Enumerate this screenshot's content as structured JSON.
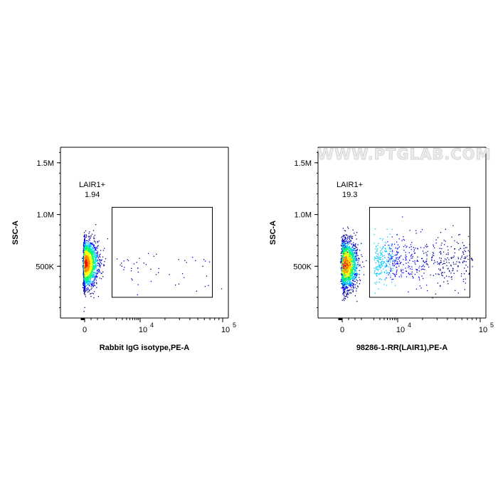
{
  "watermark": "WWW.PTGLAB.COM",
  "chart_data": [
    {
      "type": "scatter",
      "subtype": "flow-cytometry-density-plot",
      "xlabel": "Rabbit IgG isotype,PE-A",
      "ylabel": "SSC-A",
      "x_scale": "biexponential",
      "x_ticks": [
        "0",
        "10",
        "10"
      ],
      "x_tick_exponents": [
        "",
        "4",
        "5"
      ],
      "y_ticks": [
        "500K",
        "1.0M",
        "1.5M"
      ],
      "ylim": [
        0,
        1650000
      ],
      "gate": {
        "name": "LAIR1+",
        "value": "1.94",
        "x_range": [
          1500,
          75000
        ],
        "y_range": [
          200000,
          1070000
        ]
      },
      "populations": [
        {
          "name": "main",
          "x_center": 0,
          "y_center": 530000,
          "fraction": 0.98
        },
        {
          "name": "positive",
          "x_center": 5000,
          "y_center": 500000,
          "fraction": 0.0194
        }
      ],
      "colors": [
        "#00008b",
        "#0000ff",
        "#00c8ff",
        "#00ff66",
        "#ffff00",
        "#ff8800",
        "#ff0000"
      ]
    },
    {
      "type": "scatter",
      "subtype": "flow-cytometry-density-plot",
      "xlabel": "98286-1-RR(LAIR1),PE-A",
      "ylabel": "SSC-A",
      "x_scale": "biexponential",
      "x_ticks": [
        "0",
        "10",
        "10"
      ],
      "x_tick_exponents": [
        "",
        "4",
        "5"
      ],
      "y_ticks": [
        "500K",
        "1.0M",
        "1.5M"
      ],
      "ylim": [
        0,
        1650000
      ],
      "gate": {
        "name": "LAIR1+",
        "value": "19.3",
        "x_range": [
          1500,
          75000
        ],
        "y_range": [
          200000,
          1070000
        ]
      },
      "populations": [
        {
          "name": "main",
          "x_center": 0,
          "y_center": 520000,
          "fraction": 0.8
        },
        {
          "name": "positive",
          "x_center": 6000,
          "y_center": 560000,
          "fraction": 0.193
        }
      ],
      "colors": [
        "#00008b",
        "#0000ff",
        "#00c8ff",
        "#00ff66",
        "#ffff00",
        "#ff8800",
        "#ff0000"
      ]
    }
  ]
}
